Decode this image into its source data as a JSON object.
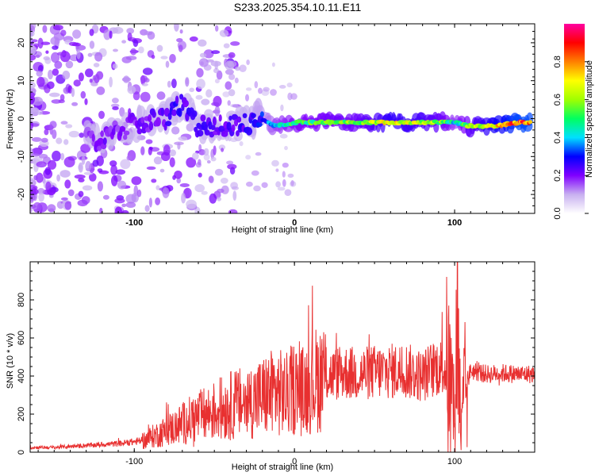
{
  "figure_title": "S233.2025.354.10.11.E11",
  "chart_data": [
    {
      "type": "heatmap",
      "name": "spectrogram",
      "xlabel": "Height of straight line (km)",
      "ylabel": "Frequency (Hz)",
      "xlim": [
        -165,
        150
      ],
      "ylim": [
        -25,
        25
      ],
      "xticks": [
        -100,
        0,
        100
      ],
      "xtick_labels": [
        "-100",
        "0",
        "100"
      ],
      "yticks": [
        -20,
        -10,
        0,
        10,
        20
      ],
      "ytick_labels": [
        "-20",
        "-10",
        "0",
        "10",
        "20"
      ],
      "colorbar": {
        "label": "Normalized spectral amplitude",
        "range": [
          0.0,
          1.0
        ],
        "ticks": [
          0.0,
          0.2,
          0.4,
          0.6,
          0.8
        ],
        "tick_labels": [
          "0.0",
          "0.2",
          "0.4",
          "0.6",
          "0.8"
        ],
        "colors": [
          "#ffffff",
          "#c8b0f0",
          "#8000ff",
          "#0000ff",
          "#00e0ff",
          "#00ff60",
          "#a0ff00",
          "#ffff00",
          "#ff8000",
          "#ff0000",
          "#ff00a0"
        ]
      },
      "ridge": [
        {
          "x": -130,
          "freq": -5,
          "amp": 0.18
        },
        {
          "x": -120,
          "freq": -6,
          "amp": 0.22
        },
        {
          "x": -110,
          "freq": -3,
          "amp": 0.2
        },
        {
          "x": -95,
          "freq": -1,
          "amp": 0.22
        },
        {
          "x": -80,
          "freq": 0,
          "amp": 0.25
        },
        {
          "x": -72,
          "freq": 4,
          "amp": 0.28
        },
        {
          "x": -60,
          "freq": -2,
          "amp": 0.26
        },
        {
          "x": -45,
          "freq": -2,
          "amp": 0.24
        },
        {
          "x": -35,
          "freq": -2,
          "amp": 0.26
        },
        {
          "x": -20,
          "freq": 0,
          "amp": 0.32
        },
        {
          "x": -12,
          "freq": -2,
          "amp": 0.45
        },
        {
          "x": 0,
          "freq": -1,
          "amp": 0.55
        },
        {
          "x": 20,
          "freq": -1,
          "amp": 0.6
        },
        {
          "x": 40,
          "freq": -1,
          "amp": 0.62
        },
        {
          "x": 60,
          "freq": -1,
          "amp": 0.75
        },
        {
          "x": 80,
          "freq": -1,
          "amp": 0.7
        },
        {
          "x": 95,
          "freq": -1,
          "amp": 0.6
        },
        {
          "x": 100,
          "freq": -1,
          "amp": 0.45
        },
        {
          "x": 110,
          "freq": -2,
          "amp": 0.65
        },
        {
          "x": 125,
          "freq": -2,
          "amp": 0.8
        },
        {
          "x": 140,
          "freq": -1,
          "amp": 0.95
        },
        {
          "x": 148,
          "freq": -1,
          "amp": 0.95
        }
      ]
    },
    {
      "type": "line",
      "name": "snr",
      "xlabel": "Height of straight line (km)",
      "ylabel": "SNR (10 * v/v)",
      "xlim": [
        -165,
        150
      ],
      "ylim": [
        0,
        1000
      ],
      "xticks": [
        -100,
        0,
        100
      ],
      "xtick_labels": [
        "-100",
        "0",
        "100"
      ],
      "yticks": [
        0,
        200,
        400,
        600,
        800
      ],
      "ytick_labels": [
        "0",
        "200",
        "400",
        "600",
        "800"
      ],
      "line_color": "#e83030",
      "series": [
        {
          "name": "SNR",
          "x": [
            -165,
            -150,
            -130,
            -110,
            -95,
            -85,
            -75,
            -65,
            -55,
            -45,
            -38,
            -30,
            -20,
            -12,
            -5,
            0,
            5,
            10,
            15,
            20,
            30,
            40,
            50,
            60,
            70,
            75,
            80,
            85,
            90,
            95,
            98,
            100,
            102,
            104,
            106,
            110,
            120,
            130,
            140,
            150
          ],
          "y": [
            25,
            25,
            35,
            45,
            60,
            95,
            130,
            170,
            200,
            230,
            250,
            260,
            290,
            320,
            300,
            340,
            320,
            360,
            390,
            400,
            420,
            410,
            420,
            425,
            430,
            410,
            400,
            430,
            450,
            430,
            350,
            180,
            700,
            100,
            300,
            430,
            410,
            415,
            410,
            410
          ]
        }
      ]
    }
  ]
}
